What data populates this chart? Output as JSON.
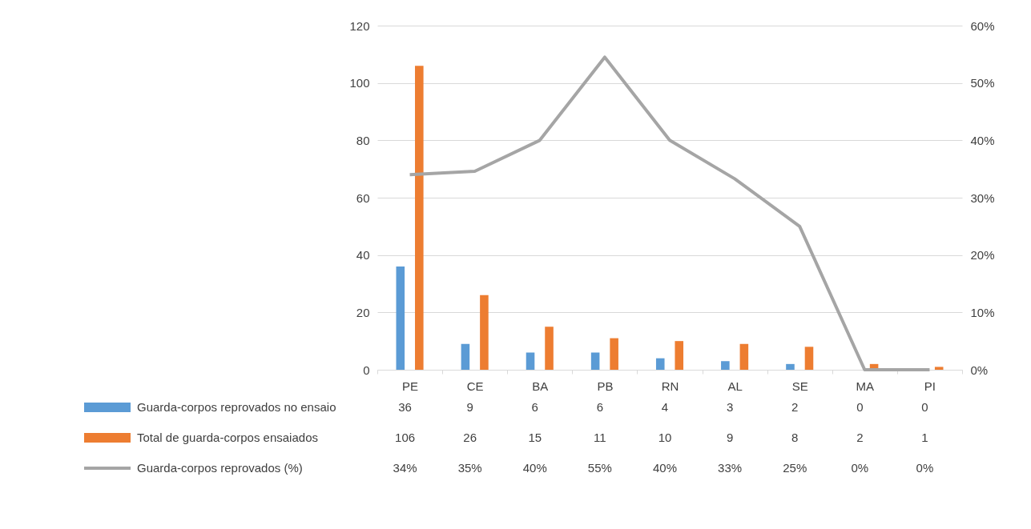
{
  "chart_data": {
    "type": "bar",
    "categories": [
      "PE",
      "CE",
      "BA",
      "PB",
      "RN",
      "AL",
      "SE",
      "MA",
      "PI"
    ],
    "series": [
      {
        "name": "Guarda-corpos reprovados no ensaio",
        "color": "#5b9bd5",
        "values": [
          36,
          9,
          6,
          6,
          4,
          3,
          2,
          0,
          0
        ],
        "value_labels": [
          "36",
          "9",
          "6",
          "6",
          "4",
          "3",
          "2",
          "0",
          "0"
        ]
      },
      {
        "name": "Total de guarda-corpos ensaiados",
        "color": "#ed7d31",
        "values": [
          106,
          26,
          15,
          11,
          10,
          9,
          8,
          2,
          1
        ],
        "value_labels": [
          "106",
          "26",
          "15",
          "11",
          "10",
          "9",
          "8",
          "2",
          "1"
        ]
      },
      {
        "name": "Guarda-corpos reprovados (%)",
        "type": "line",
        "axis": "y2",
        "color": "#a5a5a5",
        "values": [
          34,
          34.6,
          40,
          54.5,
          40,
          33.3,
          25,
          0,
          0
        ],
        "value_labels": [
          "34%",
          "35%",
          "40%",
          "55%",
          "40%",
          "33%",
          "25%",
          "0%",
          "0%"
        ]
      }
    ],
    "ylim": [
      0,
      120
    ],
    "yticks": [
      0,
      20,
      40,
      60,
      80,
      100,
      120
    ],
    "y2lim": [
      0,
      60
    ],
    "y2ticks": [
      {
        "value": 0,
        "label": "0%"
      },
      {
        "value": 10,
        "label": "10%"
      },
      {
        "value": 20,
        "label": "20%"
      },
      {
        "value": 30,
        "label": "30%"
      },
      {
        "value": 40,
        "label": "40%"
      },
      {
        "value": 50,
        "label": "50%"
      },
      {
        "value": 60,
        "label": "60%"
      }
    ],
    "grid": "y",
    "legend": "bottom left",
    "marker": "none",
    "line_style": "solid"
  }
}
